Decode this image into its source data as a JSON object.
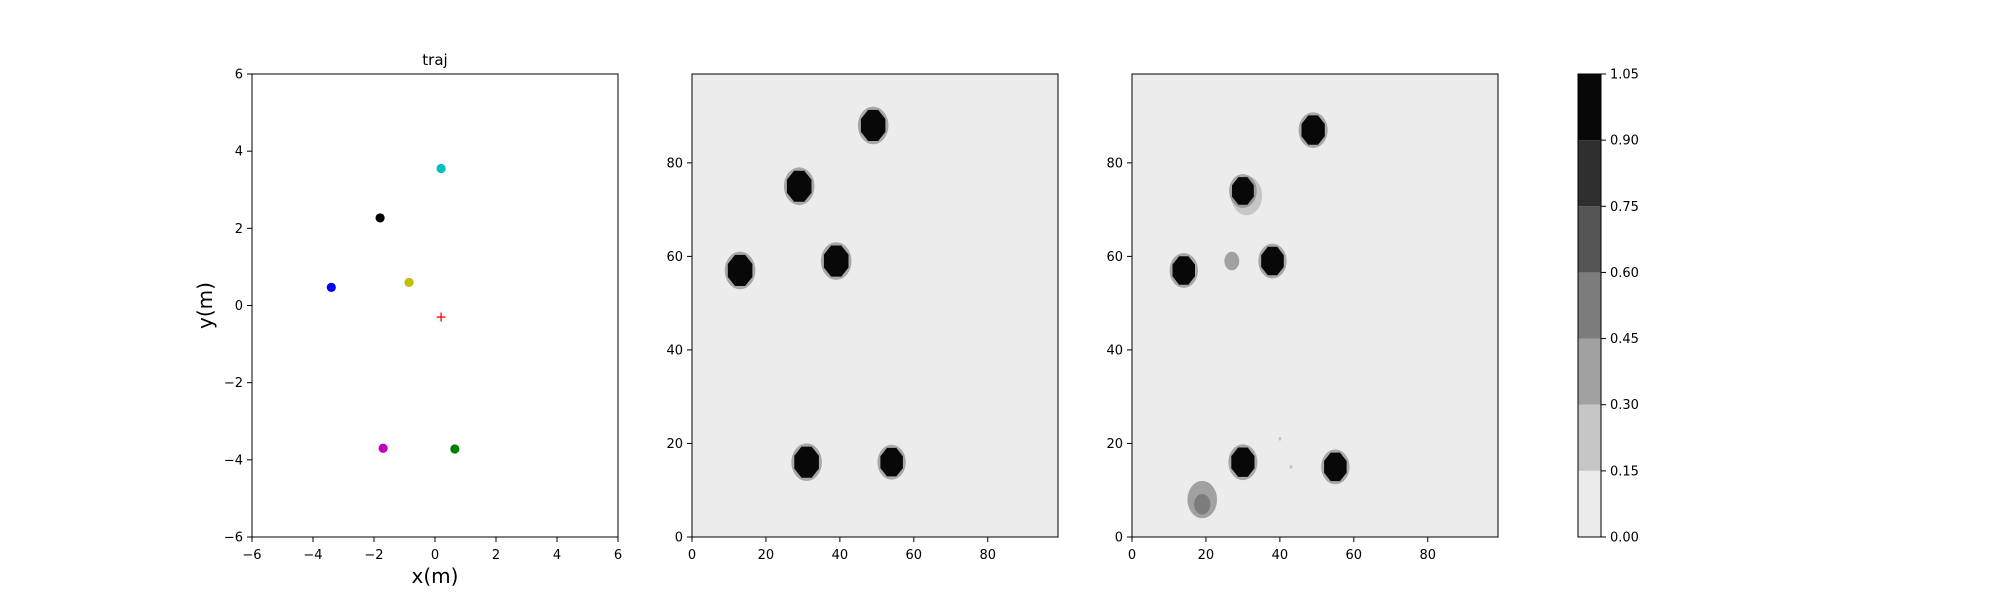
{
  "chart_data": [
    {
      "type": "scatter",
      "title": "traj",
      "xlabel": "x(m)",
      "ylabel": "y(m)",
      "xlim": [
        -6,
        6
      ],
      "ylim": [
        -6,
        6
      ],
      "xticks": [
        "−6",
        "−4",
        "−2",
        "0",
        "2",
        "4",
        "6"
      ],
      "yticks": [
        "−6",
        "−4",
        "−2",
        "0",
        "2",
        "4",
        "6"
      ],
      "grid": false,
      "points": [
        {
          "x": 0.2,
          "y": 3.55,
          "color": "#00bfbf",
          "marker": "circle"
        },
        {
          "x": -1.8,
          "y": 2.27,
          "color": "#000000",
          "marker": "circle"
        },
        {
          "x": -0.85,
          "y": 0.6,
          "color": "#bfbf00",
          "marker": "circle"
        },
        {
          "x": -3.4,
          "y": 0.47,
          "color": "#0000ff",
          "marker": "circle"
        },
        {
          "x": 0.2,
          "y": -0.3,
          "color": "#ff0000",
          "marker": "plus"
        },
        {
          "x": -1.7,
          "y": -3.7,
          "color": "#bf00bf",
          "marker": "circle"
        },
        {
          "x": 0.65,
          "y": -3.72,
          "color": "#008000",
          "marker": "circle"
        }
      ]
    },
    {
      "type": "heatmap",
      "title": "",
      "xlim": [
        0,
        99
      ],
      "ylim": [
        0,
        99
      ],
      "xticks": [
        "0",
        "20",
        "40",
        "60",
        "80"
      ],
      "yticks": [
        "0",
        "20",
        "40",
        "60",
        "80"
      ],
      "background_level": 0.07,
      "blobs": [
        {
          "x": 49,
          "y": 88,
          "r": 3.6,
          "level": 1.0
        },
        {
          "x": 29,
          "y": 75,
          "r": 3.6,
          "level": 1.0
        },
        {
          "x": 13,
          "y": 57,
          "r": 3.6,
          "level": 1.0
        },
        {
          "x": 39,
          "y": 59,
          "r": 3.6,
          "level": 1.0
        },
        {
          "x": 31,
          "y": 16,
          "r": 3.6,
          "level": 1.0
        },
        {
          "x": 54,
          "y": 16,
          "r": 3.3,
          "level": 1.0
        }
      ]
    },
    {
      "type": "heatmap",
      "title": "",
      "xlim": [
        0,
        99
      ],
      "ylim": [
        0,
        99
      ],
      "xticks": [
        "0",
        "20",
        "40",
        "60",
        "80"
      ],
      "yticks": [
        "0",
        "20",
        "40",
        "60",
        "80"
      ],
      "background_level": 0.07,
      "blobs": [
        {
          "x": 49,
          "y": 87,
          "r": 3.4,
          "level": 1.0
        },
        {
          "x": 31,
          "y": 73,
          "r": 4.2,
          "level": 0.25
        },
        {
          "x": 30,
          "y": 74,
          "r": 3.2,
          "level": 1.0
        },
        {
          "x": 14,
          "y": 57,
          "r": 3.3,
          "level": 1.0
        },
        {
          "x": 27,
          "y": 59,
          "r": 2.0,
          "level": 0.3
        },
        {
          "x": 38,
          "y": 59,
          "r": 3.3,
          "level": 1.0
        },
        {
          "x": 30,
          "y": 16,
          "r": 3.4,
          "level": 1.0
        },
        {
          "x": 55,
          "y": 15,
          "r": 3.3,
          "level": 1.0
        },
        {
          "x": 19,
          "y": 8,
          "r": 4.0,
          "level": 0.35
        },
        {
          "x": 19,
          "y": 7,
          "r": 2.2,
          "level": 0.55
        },
        {
          "x": 40,
          "y": 21,
          "r": 0.4,
          "level": 0.2
        },
        {
          "x": 43,
          "y": 15,
          "r": 0.4,
          "level": 0.2
        }
      ]
    },
    {
      "type": "colorbar",
      "levels": [
        0.0,
        0.15,
        0.3,
        0.45,
        0.6,
        0.75,
        0.9,
        1.05
      ],
      "ticklabels": [
        "0.00",
        "0.15",
        "0.30",
        "0.45",
        "0.60",
        "0.75",
        "0.90",
        "1.05"
      ],
      "band_colors": [
        "#ececec",
        "#c6c6c6",
        "#a1a1a1",
        "#7c7c7c",
        "#555555",
        "#2f2f2f",
        "#080808"
      ]
    }
  ]
}
